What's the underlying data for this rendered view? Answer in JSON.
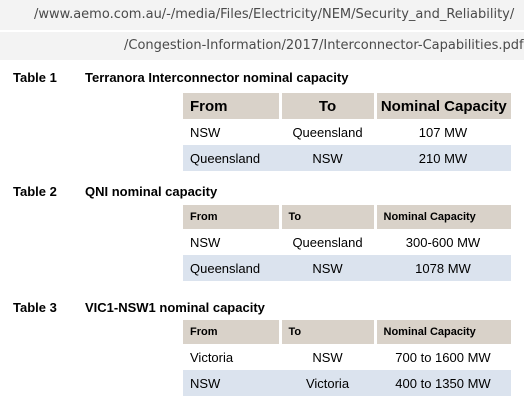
{
  "url": {
    "line1": "/www.aemo.com.au/-/media/Files/Electricity/NEM/Security_and_Reliability/",
    "line2": "/Congestion-Information/2017/Interconnector-Capabilities.pdf"
  },
  "tables": [
    {
      "number": "Table 1",
      "title": "Terranora Interconnector nominal capacity",
      "headers": [
        "From",
        "To",
        "Nominal Capacity"
      ],
      "rows": [
        [
          "NSW",
          "Queensland",
          "107 MW"
        ],
        [
          "Queensland",
          "NSW",
          "210 MW"
        ]
      ]
    },
    {
      "number": "Table 2",
      "title": "QNI nominal capacity",
      "headers": [
        "From",
        "To",
        "Nominal Capacity"
      ],
      "rows": [
        [
          "NSW",
          "Queensland",
          "300-600 MW"
        ],
        [
          "Queensland",
          "NSW",
          "1078 MW"
        ]
      ]
    },
    {
      "number": "Table 3",
      "title": "VIC1-NSW1 nominal capacity",
      "headers": [
        "From",
        "To",
        "Nominal Capacity"
      ],
      "rows": [
        [
          "Victoria",
          "NSW",
          "700 to 1600 MW"
        ],
        [
          "NSW",
          "Victoria",
          "400 to 1350 MW"
        ]
      ]
    }
  ]
}
